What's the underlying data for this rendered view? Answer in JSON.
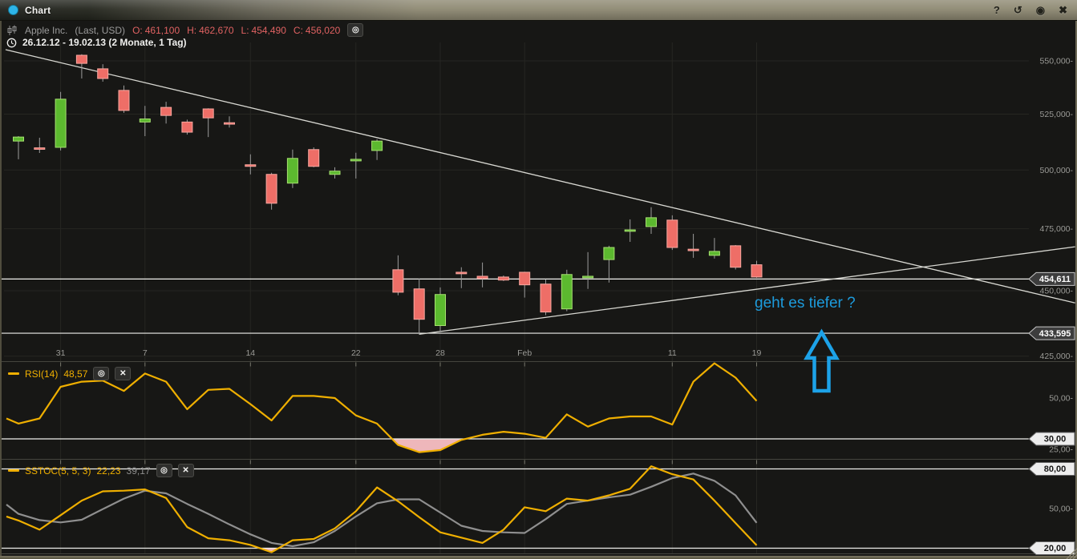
{
  "widget": {
    "title": "Chart"
  },
  "icons": {
    "help": "?",
    "reset": "↺",
    "record": "◉",
    "close": "✖",
    "settings": "◎",
    "remove": "✕"
  },
  "header": {
    "instrument": "Apple Inc.",
    "series_info": "(Last, USD)",
    "ohlc": {
      "o": {
        "label": "O:",
        "value": "461,100"
      },
      "h": {
        "label": "H:",
        "value": "462,670"
      },
      "l": {
        "label": "L:",
        "value": "454,490"
      },
      "c": {
        "label": "C:",
        "value": "456,020"
      }
    },
    "range": "26.12.12 - 19.02.13 (2 Monate, 1 Tag)"
  },
  "indicators": {
    "rsi": {
      "label": "RSI(14)",
      "value": "48,57"
    },
    "sstoc": {
      "label": "SSTOC(5, 5, 3)",
      "k": "22,23",
      "d": "39,17"
    }
  },
  "annotation": {
    "text": "geht es tiefer ?",
    "color": "#1d9bdc"
  },
  "colors": {
    "background": "#171715",
    "bullish_fill": "#5cb92f",
    "bullish_border": "#a6e070",
    "bearish_fill": "#ee6e67",
    "bearish_border": "#f8a8a1",
    "wick": "#9c9c9c",
    "grid": "#262622",
    "separator": "#45453e",
    "axis_tick": "#77776c",
    "trendline": "#d8d8d2",
    "support_line": "#efefec",
    "axis_text": "#9a9a96",
    "rsi_line": "#efaf00",
    "stoch_k": "#efaf00",
    "stoch_d": "#8f8f8f",
    "oversold_fill": "#eeb7bb",
    "annotation_blue": "#1da2e8",
    "tag_dark_bg": "#3d3d3d",
    "tag_dark_border": "#c9c9c9",
    "tag_dark_text": "#ffffff",
    "tag_light_bg": "#ededed",
    "tag_light_border": "#666666",
    "tag_light_text": "#151515",
    "grip": "#8c8773"
  },
  "chart_data": [
    {
      "type": "candlestick",
      "title": "Apple Inc. (Last, USD)",
      "date_range": "26.12.12 - 19.02.13 (2 Monate, 1 Tag)",
      "y_axis": {
        "ticks": [
          {
            "value": 550,
            "label": "550,000-"
          },
          {
            "value": 525,
            "label": "525,000-"
          },
          {
            "value": 500,
            "label": "500,000-"
          },
          {
            "value": 475,
            "label": "475,000-"
          },
          {
            "value": 450,
            "label": "450,000-"
          },
          {
            "value": 425,
            "label": "425,000-"
          }
        ]
      },
      "x_axis": {
        "ticks": [
          {
            "index": 2,
            "label": "31"
          },
          {
            "index": 6,
            "label": "7"
          },
          {
            "index": 11,
            "label": "14"
          },
          {
            "index": 16,
            "label": "22"
          },
          {
            "index": 20,
            "label": "28"
          },
          {
            "index": 24,
            "label": "Feb"
          },
          {
            "index": 31,
            "label": "11"
          },
          {
            "index": 35,
            "label": "19"
          }
        ]
      },
      "candles": [
        [
          512.8,
          515.0,
          504.7,
          514.6
        ],
        [
          509.7,
          514.3,
          507.5,
          509.2
        ],
        [
          510.0,
          535.3,
          508.6,
          531.9
        ],
        [
          552.7,
          553.2,
          541.6,
          548.8
        ],
        [
          546.2,
          548.4,
          540.1,
          541.6
        ],
        [
          536.0,
          538.3,
          525.6,
          526.7
        ],
        [
          521.4,
          528.8,
          515.0,
          522.8
        ],
        [
          528.1,
          530.7,
          520.7,
          524.4
        ],
        [
          521.4,
          522.5,
          515.7,
          516.8
        ],
        [
          527.4,
          527.7,
          514.6,
          523.3
        ],
        [
          521.0,
          524.0,
          518.9,
          520.5
        ],
        [
          502.3,
          506.9,
          498.1,
          501.6
        ],
        [
          498.1,
          498.8,
          483.0,
          485.7
        ],
        [
          494.3,
          509.0,
          492.2,
          505.1
        ],
        [
          509.0,
          510.0,
          501.2,
          501.6
        ],
        [
          498.1,
          501.2,
          496.3,
          499.5
        ],
        [
          504.0,
          507.6,
          496.3,
          504.7
        ],
        [
          508.6,
          513.6,
          504.4,
          512.8
        ],
        [
          458.3,
          464.1,
          448.2,
          449.4
        ],
        [
          450.7,
          454.8,
          433.1,
          438.9
        ],
        [
          436.5,
          451.3,
          434.4,
          448.5
        ],
        [
          457.3,
          459.3,
          451.0,
          456.7
        ],
        [
          455.7,
          461.2,
          451.3,
          454.8
        ],
        [
          455.4,
          456.0,
          453.8,
          454.2
        ],
        [
          457.3,
          457.5,
          447.3,
          452.3
        ],
        [
          452.6,
          454.5,
          440.5,
          441.7
        ],
        [
          442.9,
          458.3,
          442.0,
          456.4
        ],
        [
          455.1,
          465.4,
          450.7,
          455.7
        ],
        [
          462.4,
          468.0,
          453.2,
          467.3
        ],
        [
          474.0,
          478.9,
          469.6,
          474.5
        ],
        [
          475.9,
          484.0,
          472.9,
          479.6
        ],
        [
          478.6,
          480.6,
          466.3,
          467.3
        ],
        [
          466.6,
          472.9,
          463.1,
          466.0
        ],
        [
          464.1,
          471.2,
          462.8,
          465.7
        ],
        [
          468.0,
          468.3,
          458.4,
          459.3
        ],
        [
          460.3,
          461.9,
          455.1,
          455.4
        ]
      ],
      "support_lines": [
        {
          "value": 454.611,
          "label": "454,611"
        },
        {
          "value": 433.595,
          "label": "433,595"
        }
      ],
      "trendlines": [
        {
          "i1": -0.61,
          "p1": 555.4,
          "i2": 50.1,
          "p2": 445.2
        },
        {
          "i1": 19.0,
          "p1": 433.2,
          "i2": 50.1,
          "p2": 467.6
        }
      ],
      "annotation_arrow": {
        "x": 1024.5,
        "tip_y": 415,
        "head_half_w": 18.5,
        "head_base_y": 447,
        "shaft_half_w": 9,
        "bottom_y": 488
      }
    },
    {
      "type": "line",
      "name": "RSI(14)",
      "value_display": "48,57",
      "ylim": [
        20,
        70
      ],
      "y_ticks": [
        {
          "value": 50,
          "label": "50,00-"
        },
        {
          "value": 25,
          "label": "25,00-"
        }
      ],
      "tagged_levels": [
        {
          "value": 30,
          "label": "30,00"
        }
      ],
      "oversold_level": 30,
      "lead_value": 40,
      "values": [
        37.5,
        40,
        55.5,
        58,
        58.5,
        53.5,
        62,
        58,
        44.5,
        54,
        54.5,
        47,
        39,
        51,
        51,
        50,
        41.5,
        37.5,
        27,
        23.5,
        24.5,
        29.5,
        32,
        33.5,
        32.5,
        30.5,
        42,
        36,
        40,
        41,
        41,
        37,
        58,
        67,
        60,
        48.6
      ]
    },
    {
      "type": "line",
      "name": "SSTOC(5, 5, 3)",
      "k_display": "22,23",
      "d_display": "39,17",
      "ylim": [
        15,
        90
      ],
      "y_ticks": [
        {
          "value": 50,
          "label": "50,00-"
        }
      ],
      "tagged_levels": [
        {
          "value": 80,
          "label": "80,00"
        },
        {
          "value": 20,
          "label": "20,00"
        }
      ],
      "oversold_level": 20,
      "k_lead": 44,
      "d_lead": 53,
      "k": [
        41,
        34,
        45,
        56,
        63,
        63.5,
        64.5,
        58,
        36,
        27.5,
        26,
        22.5,
        17,
        26,
        27,
        35,
        48,
        66,
        55.5,
        43.5,
        32,
        28,
        24,
        34,
        51,
        48,
        57.5,
        56,
        60,
        65,
        82,
        76,
        72,
        56,
        39,
        22.2
      ],
      "d": [
        46,
        41.3,
        39.5,
        41.5,
        49.6,
        57.5,
        63.5,
        61.5,
        53.5,
        46,
        38,
        30.5,
        24,
        21.5,
        24.5,
        33,
        44,
        54,
        57,
        57,
        47,
        37,
        33,
        32,
        31.5,
        42,
        53.5,
        56,
        58.5,
        60.5,
        66.5,
        73,
        76.5,
        71,
        60,
        39.2
      ]
    }
  ]
}
